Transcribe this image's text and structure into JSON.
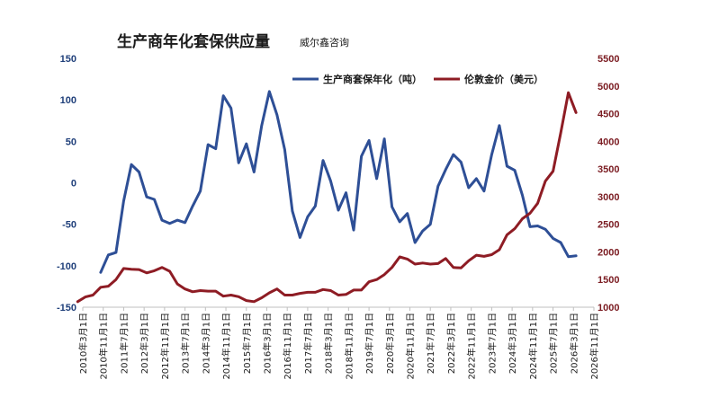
{
  "chart_data": {
    "type": "line",
    "title": "生产商年化套保供应量",
    "subtitle": "威尔鑫咨询",
    "xlabel": "",
    "ylabel_left": "",
    "ylabel_right": "",
    "ylim_left": [
      -150,
      150
    ],
    "yticks_left": [
      -150,
      -100,
      -50,
      0,
      50,
      100,
      150
    ],
    "ylim_right": [
      1000,
      5500
    ],
    "yticks_right": [
      1000,
      1500,
      2000,
      2500,
      3000,
      3500,
      4000,
      4500,
      5000,
      5500
    ],
    "x_range": [
      2010.167,
      2026.833
    ],
    "x_tick_labels": [
      "2010年3月1日",
      "2010年11月1日",
      "2011年7月1日",
      "2012年3月1日",
      "2012年11月1日",
      "2013年7月1日",
      "2014年3月1日",
      "2014年11月1日",
      "2015年7月1日",
      "2016年3月1日",
      "2016年11月1日",
      "2017年7月1日",
      "2018年3月1日",
      "2018年11月1日",
      "2019年7月1日",
      "2020年3月1日",
      "2020年11月1日",
      "2021年7月1日",
      "2022年3月1日",
      "2022年11月1日",
      "2023年7月1日",
      "2024年3月1日",
      "2024年11月1日",
      "2025年7月1日",
      "2026年3月1日",
      "2026年11月1日"
    ],
    "grid": false,
    "legend_position": "top-right",
    "series": [
      {
        "name": "生产商套保年化（吨）",
        "axis": "left",
        "color": "#2e4f96",
        "x": [
          2010.75,
          2011.0,
          2011.25,
          2011.5,
          2011.75,
          2012.0,
          2012.25,
          2012.5,
          2012.75,
          2013.0,
          2013.25,
          2013.5,
          2013.75,
          2014.0,
          2014.25,
          2014.5,
          2014.75,
          2015.0,
          2015.25,
          2015.5,
          2015.75,
          2016.0,
          2016.25,
          2016.5,
          2016.75,
          2017.0,
          2017.25,
          2017.5,
          2017.75,
          2018.0,
          2018.25,
          2018.5,
          2018.75,
          2019.0,
          2019.25,
          2019.5,
          2019.75,
          2020.0,
          2020.25,
          2020.5,
          2020.75,
          2021.0,
          2021.25,
          2021.5,
          2021.75,
          2022.0,
          2022.25,
          2022.5,
          2022.75,
          2023.0,
          2023.25,
          2023.5,
          2023.75,
          2024.0,
          2024.25,
          2024.5,
          2024.75,
          2025.0,
          2025.25,
          2025.5,
          2025.75,
          2026.0,
          2026.25
        ],
        "y": [
          -108,
          -87,
          -84,
          -22,
          22,
          13,
          -17,
          -20,
          -45,
          -49,
          -45,
          -48,
          -28,
          -10,
          46,
          41,
          105,
          90,
          24,
          47,
          13,
          69,
          110,
          82,
          40,
          -34,
          -66,
          -41,
          -28,
          27,
          2,
          -33,
          -12,
          -57,
          32,
          51,
          5,
          53,
          -29,
          -47,
          -37,
          -72,
          -58,
          -50,
          -4,
          16,
          34,
          25,
          -6,
          5,
          -10,
          34,
          69,
          20,
          15,
          -15,
          -53,
          -52,
          -56,
          -67,
          -72,
          -89,
          -88
        ]
      },
      {
        "name": "伦敦金价（美元）",
        "axis": "right",
        "color": "#8e1c24",
        "x": [
          2010.0,
          2010.25,
          2010.5,
          2010.75,
          2011.0,
          2011.25,
          2011.5,
          2011.75,
          2012.0,
          2012.25,
          2012.5,
          2012.75,
          2013.0,
          2013.25,
          2013.5,
          2013.75,
          2014.0,
          2014.25,
          2014.5,
          2014.75,
          2015.0,
          2015.25,
          2015.5,
          2015.75,
          2016.0,
          2016.25,
          2016.5,
          2016.75,
          2017.0,
          2017.25,
          2017.5,
          2017.75,
          2018.0,
          2018.25,
          2018.5,
          2018.75,
          2019.0,
          2019.25,
          2019.5,
          2019.75,
          2020.0,
          2020.25,
          2020.5,
          2020.75,
          2021.0,
          2021.25,
          2021.5,
          2021.75,
          2022.0,
          2022.25,
          2022.5,
          2022.75,
          2023.0,
          2023.25,
          2023.5,
          2023.75,
          2024.0,
          2024.25,
          2024.5,
          2024.75,
          2025.0,
          2025.25,
          2025.5,
          2025.75,
          2026.0,
          2026.25
        ],
        "y": [
          1100,
          1185,
          1220,
          1360,
          1380,
          1500,
          1700,
          1685,
          1680,
          1620,
          1660,
          1720,
          1650,
          1420,
          1330,
          1280,
          1300,
          1290,
          1290,
          1200,
          1220,
          1190,
          1120,
          1100,
          1170,
          1260,
          1330,
          1220,
          1220,
          1250,
          1270,
          1270,
          1320,
          1300,
          1220,
          1230,
          1310,
          1310,
          1460,
          1500,
          1590,
          1720,
          1910,
          1870,
          1780,
          1800,
          1780,
          1790,
          1880,
          1720,
          1710,
          1840,
          1940,
          1920,
          1950,
          2040,
          2310,
          2420,
          2600,
          2700,
          2880,
          3280,
          3460,
          4150,
          4880,
          4520
        ]
      }
    ]
  }
}
